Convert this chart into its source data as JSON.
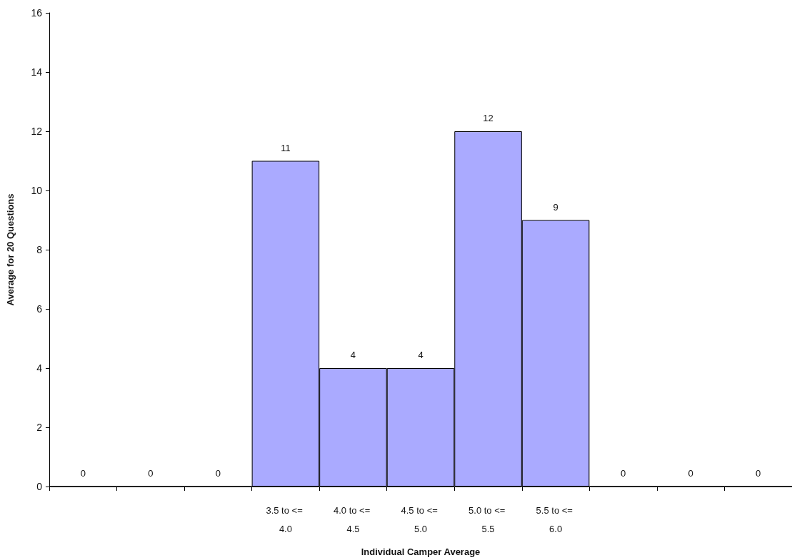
{
  "chart_data": {
    "type": "bar",
    "xlabel": "Individual Camper Average",
    "ylabel": "Average for 20 Questions",
    "categories": [
      null,
      null,
      null,
      "3.5 to <= 4.0",
      "4.0 to <= 4.5",
      "4.5 to <= 5.0",
      "5.0 to <= 5.5",
      "5.5 to <= 6.0",
      null,
      null,
      null
    ],
    "values": [
      0,
      0,
      0,
      11,
      4,
      4,
      12,
      9,
      0,
      0,
      0
    ],
    "color": "#aaaaff",
    "ylim": [
      0,
      16
    ],
    "yticks": [
      0,
      2,
      4,
      6,
      8,
      10,
      12,
      14,
      16
    ],
    "grid": false,
    "data_labels": true
  }
}
